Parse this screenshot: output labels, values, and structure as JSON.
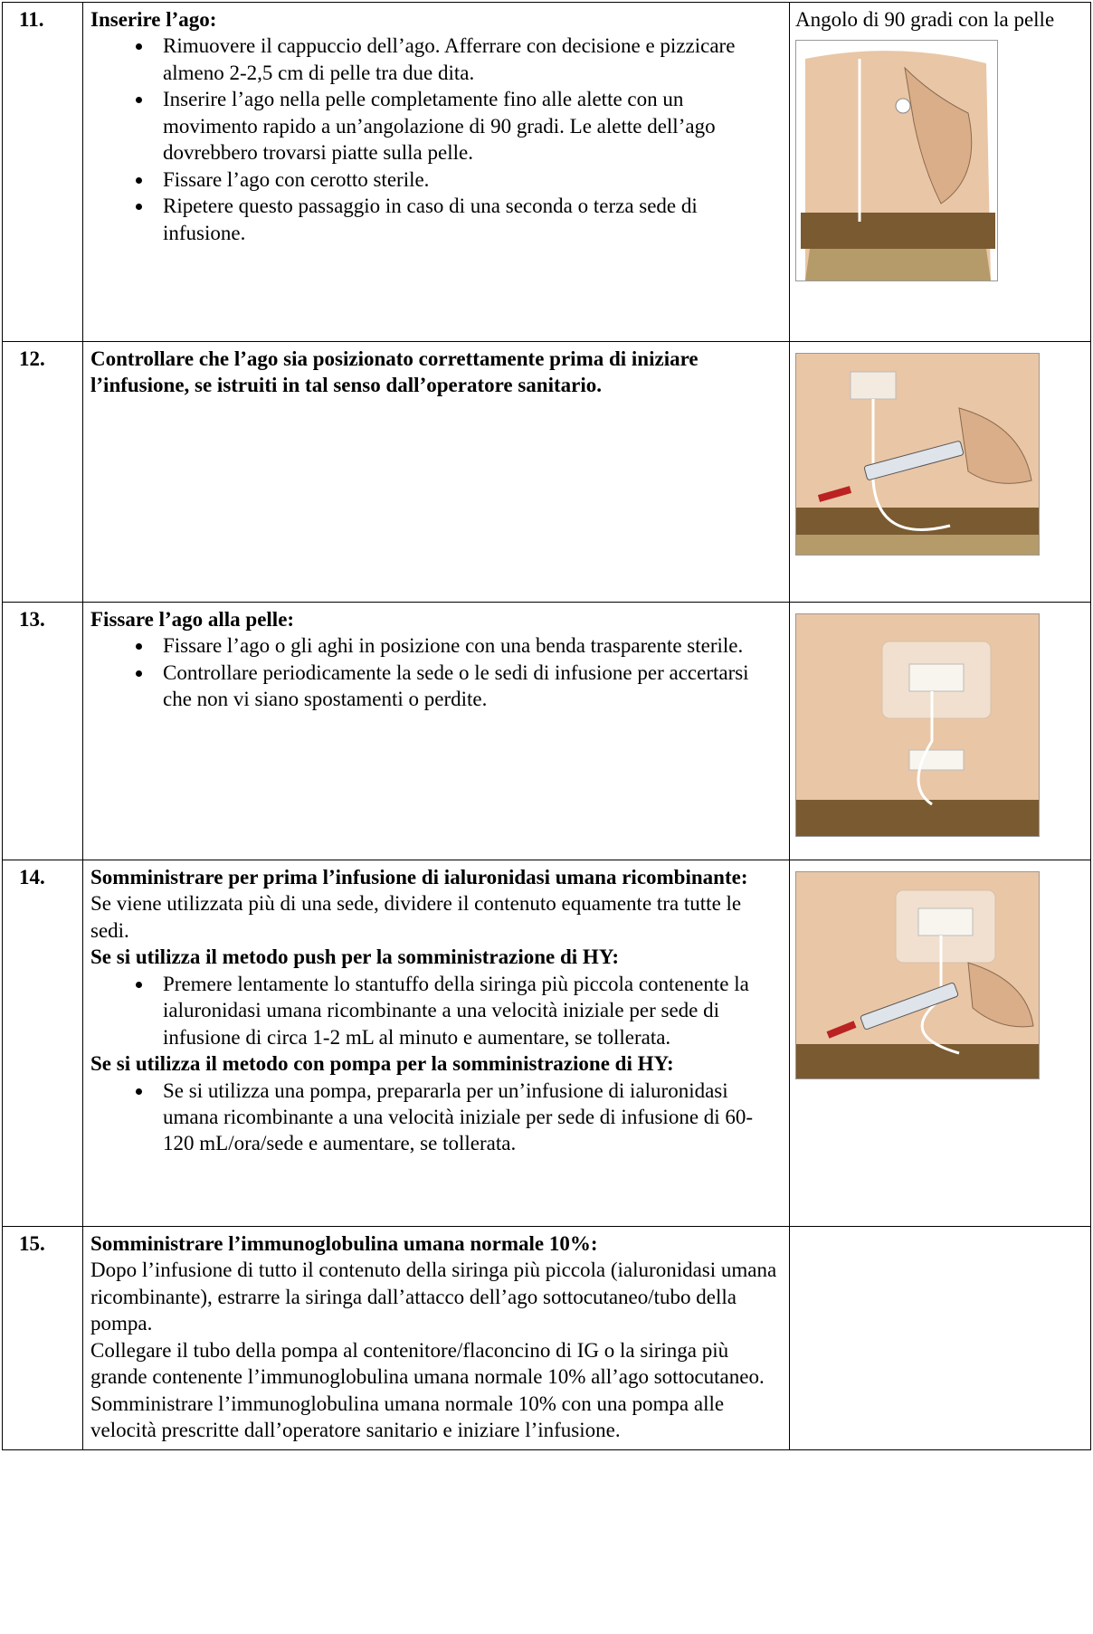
{
  "rows": [
    {
      "number": "11.",
      "blocks": [
        {
          "bold": "Inserire l’ago:"
        },
        {
          "bullet": "Rimuovere il cappuccio dell’ago. Afferrare con decisione e pizzicare almeno 2-2,5 cm di pelle tra due dita."
        },
        {
          "bullet": "Inserire l’ago nella pelle completamente fino alle alette con un movimento rapido a un’angolazione di 90 gradi. Le alette dell’ago dovrebbero trovarsi piatte sulla pelle."
        },
        {
          "bullet": "Fissare l’ago con cerotto sterile."
        },
        {
          "bullet": "Ripetere questo passaggio in caso di una seconda o terza sede di infusione."
        }
      ],
      "caption": "Angolo di 90 gradi con la pelle"
    },
    {
      "number": "12.",
      "blocks": [
        {
          "bold": "Controllare che l’ago sia posizionato correttamente prima di iniziare l’infusione, se istruiti in tal senso dall’operatore sanitario."
        }
      ]
    },
    {
      "number": "13.",
      "blocks": [
        {
          "bold": "Fissare l’ago alla pelle:"
        },
        {
          "bullet": "Fissare l’ago o gli aghi in posizione con una benda trasparente sterile."
        },
        {
          "bullet": "Controllare periodicamente la sede o le sedi di infusione per accertarsi che non vi siano spostamenti o perdite."
        }
      ]
    },
    {
      "number": "14.",
      "blocks": [
        {
          "bold": "Somministrare per prima l’infusione di ialuronidasi umana ricombinante:"
        },
        {
          "text": "Se viene utilizzata più di una sede, dividere il contenuto equamente tra tutte le sedi."
        },
        {
          "bold": "Se si utilizza il metodo push per la somministrazione di HY:"
        },
        {
          "bullet": "Premere lentamente lo stantuffo della siringa più piccola contenente la ialuronidasi umana ricombinante a una velocità iniziale per sede di infusione di circa 1-2 mL al minuto e aumentare, se tollerata."
        },
        {
          "bold": "Se si utilizza il metodo con pompa per la somministrazione di HY:"
        },
        {
          "bullet": "Se si utilizza una pompa, prepararla per un’infusione di ialuronidasi umana ricombinante a una velocità iniziale per sede di infusione di 60-120 mL/ora/sede e aumentare, se tollerata."
        }
      ]
    },
    {
      "number": "15.",
      "blocks": [
        {
          "bold": "Somministrare l’immunoglobulina umana normale 10%:"
        },
        {
          "text": "Dopo l’infusione di tutto il contenuto della siringa più piccola (ialuronidasi umana ricombinante), estrarre la siringa dall’attacco dell’ago sottocutaneo/tubo della pompa."
        },
        {
          "text": "Collegare il tubo della pompa al contenitore/flaconcino di IG o la siringa più grande contenente l’immunoglobulina umana normale 10% all’ago sottocutaneo."
        },
        {
          "text": "Somministrare l’immunoglobulina umana normale 10% con una pompa alle velocità prescritte dall’operatore sanitario e iniziare l’infusione."
        }
      ]
    }
  ]
}
